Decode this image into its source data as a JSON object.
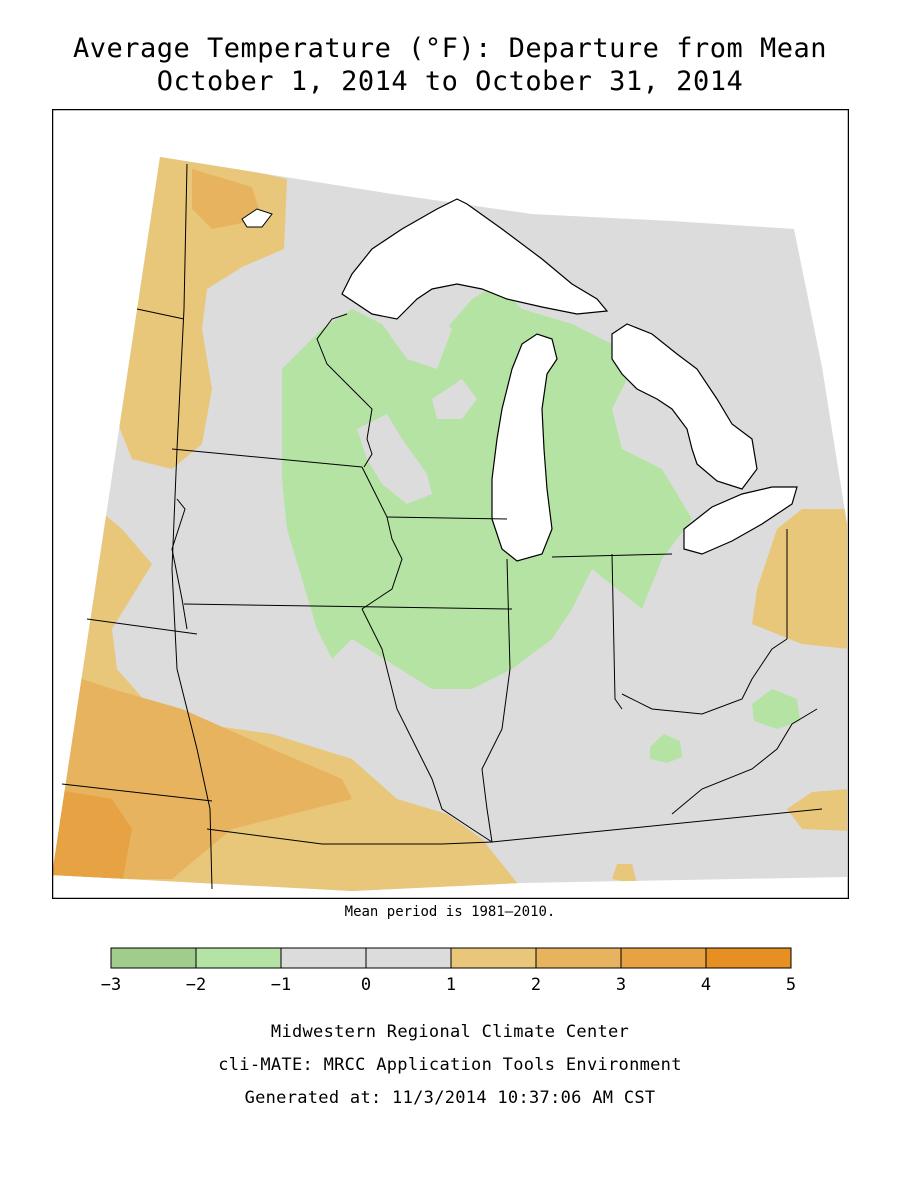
{
  "title_line1": "Average Temperature (°F): Departure from Mean",
  "title_line2": "October 1, 2014 to October 31, 2014",
  "mean_period": "Mean period is 1981–2010.",
  "legend": {
    "bins": [
      {
        "from": -3,
        "to": -2,
        "color": "#a0cc8c"
      },
      {
        "from": -2,
        "to": -1,
        "color": "#b5e3a4"
      },
      {
        "from": -1,
        "to": 0,
        "color": "#dcdcdc"
      },
      {
        "from": 0,
        "to": 1,
        "color": "#dcdcdc"
      },
      {
        "from": 1,
        "to": 2,
        "color": "#e8c67a"
      },
      {
        "from": 2,
        "to": 3,
        "color": "#e8b35e"
      },
      {
        "from": 3,
        "to": 4,
        "color": "#e6a243"
      },
      {
        "from": 4,
        "to": 5,
        "color": "#e68f22"
      }
    ],
    "tick_labels": [
      "−3",
      "−2",
      "−1",
      "0",
      "1",
      "2",
      "3",
      "4",
      "5"
    ]
  },
  "footer": {
    "line1": "Midwestern Regional Climate Center",
    "line2": "cli-MATE: MRCC Application Tools Environment",
    "line3": "Generated at: 11/3/2014 10:37:06 AM CST"
  },
  "colors": {
    "neutral": "#dcdcdc",
    "cool": "#b5e3a4",
    "warm1": "#e8c67a",
    "warm2": "#e8b35e",
    "warm3": "#e6a243",
    "water": "#ffffff"
  }
}
